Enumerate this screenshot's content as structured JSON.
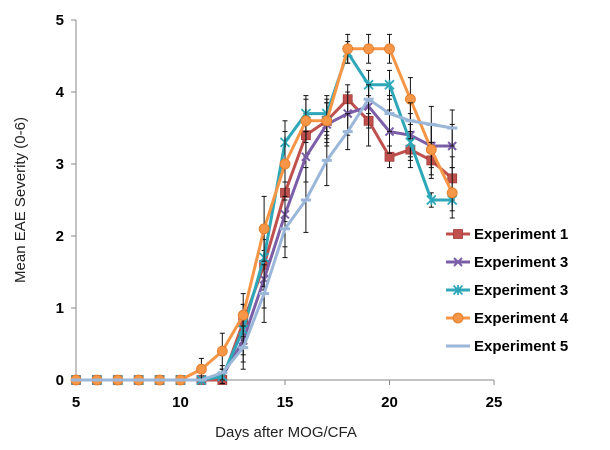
{
  "chart_data": {
    "type": "line",
    "title": "",
    "xlabel": "Days after MOG/CFA",
    "ylabel": "Mean EAE Severity (0-6)",
    "xlim": [
      5,
      25
    ],
    "ylim": [
      0,
      5
    ],
    "xticks": [
      5,
      10,
      15,
      20,
      25
    ],
    "yticks": [
      0,
      1,
      2,
      3,
      4,
      5
    ],
    "grid": false,
    "legend_position": "right",
    "x": [
      5,
      6,
      7,
      8,
      9,
      10,
      11,
      12,
      13,
      14,
      15,
      16,
      17,
      18,
      19,
      20,
      21,
      22,
      23
    ],
    "series": [
      {
        "name": "Experiment 1",
        "marker": "square",
        "color": "#c0504d",
        "values": [
          0,
          0,
          0,
          0,
          0,
          0,
          0,
          0,
          0.8,
          1.6,
          2.6,
          3.4,
          3.6,
          3.9,
          3.6,
          3.1,
          3.2,
          3.05,
          2.8
        ],
        "errors": [
          0,
          0,
          0,
          0,
          0,
          0,
          0,
          0,
          0.25,
          0.35,
          0.4,
          0.3,
          0.25,
          0.2,
          0.35,
          0.15,
          0.25,
          0.25,
          0.3
        ]
      },
      {
        "name": "Experiment 3",
        "marker": "x",
        "color": "#7b5ea7",
        "values": [
          0,
          0,
          0,
          0,
          0,
          0,
          0,
          0.05,
          0.55,
          1.4,
          2.3,
          3.1,
          3.55,
          3.7,
          3.8,
          3.45,
          3.4,
          3.25,
          3.25
        ],
        "errors": [
          0,
          0,
          0,
          0,
          0,
          0,
          0,
          0.1,
          0.3,
          0.4,
          0.45,
          0.35,
          0.3,
          0.3,
          0.3,
          0.3,
          0.3,
          0.3,
          0.3
        ]
      },
      {
        "name": "Experiment 3",
        "marker": "star",
        "color": "#2ea7b8",
        "values": [
          0,
          0,
          0,
          0,
          0,
          0,
          0,
          0.05,
          0.7,
          1.7,
          3.3,
          3.7,
          3.7,
          4.55,
          4.1,
          4.1,
          3.3,
          2.5,
          2.5
        ],
        "errors": [
          0,
          0,
          0,
          0,
          0,
          0,
          0,
          0.1,
          0.35,
          0.4,
          0.3,
          0.25,
          0.25,
          0.15,
          0.2,
          0.2,
          0.25,
          0.1,
          0.15
        ]
      },
      {
        "name": "Experiment 4",
        "marker": "circle",
        "color": "#f79646",
        "values": [
          0,
          0,
          0,
          0,
          0,
          0,
          0.15,
          0.4,
          0.9,
          2.1,
          3.0,
          3.6,
          3.6,
          4.6,
          4.6,
          4.6,
          3.9,
          3.2,
          2.6
        ],
        "errors": [
          0,
          0,
          0,
          0,
          0,
          0,
          0.15,
          0.25,
          0.3,
          0.45,
          0.45,
          0.3,
          0.3,
          0.2,
          0.2,
          0.2,
          0.3,
          0.35,
          0.35
        ]
      },
      {
        "name": "Experiment 5",
        "marker": "dash",
        "color": "#9ab6d8",
        "values": [
          0,
          0,
          0,
          0,
          0,
          0,
          0,
          0.1,
          0.45,
          1.2,
          2.1,
          2.5,
          3.05,
          3.45,
          3.9,
          3.7,
          3.6,
          3.55,
          3.5
        ],
        "errors": [
          0,
          0,
          0,
          0,
          0,
          0,
          0,
          0.1,
          0.3,
          0.4,
          0.4,
          0.45,
          0.35,
          0.25,
          0.2,
          0.25,
          0.25,
          0.25,
          0.25
        ]
      }
    ]
  }
}
